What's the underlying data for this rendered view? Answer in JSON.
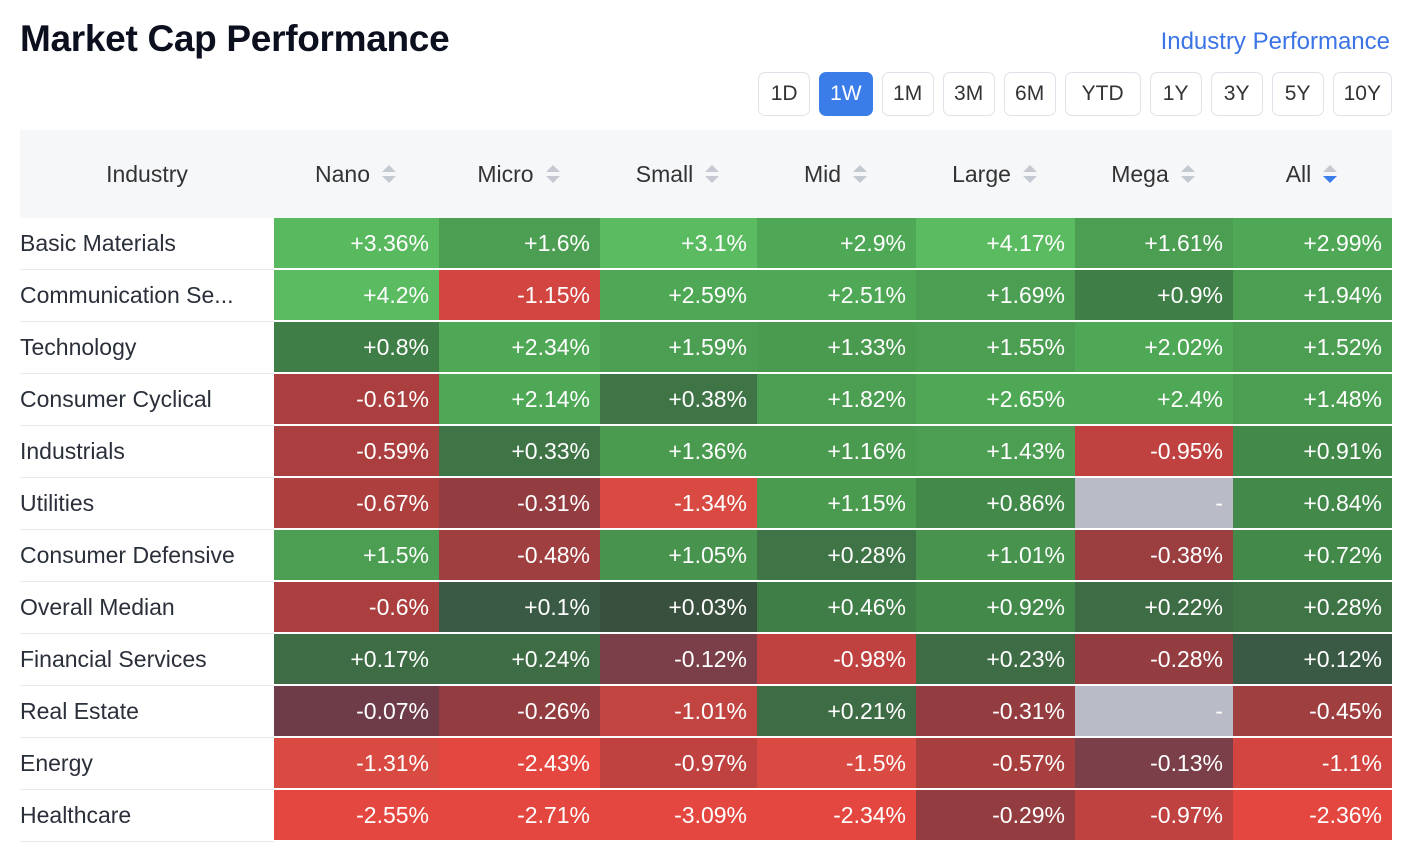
{
  "title": "Market Cap Performance",
  "industry_link": "Industry Performance",
  "periods": [
    {
      "label": "1D",
      "active": false
    },
    {
      "label": "1W",
      "active": true
    },
    {
      "label": "1M",
      "active": false
    },
    {
      "label": "3M",
      "active": false
    },
    {
      "label": "6M",
      "active": false
    },
    {
      "label": "YTD",
      "active": false
    },
    {
      "label": "1Y",
      "active": false
    },
    {
      "label": "3Y",
      "active": false
    },
    {
      "label": "5Y",
      "active": false
    },
    {
      "label": "10Y",
      "active": false
    }
  ],
  "table": {
    "headers": [
      "Industry",
      "Nano",
      "Micro",
      "Small",
      "Mid",
      "Large",
      "Mega",
      "All"
    ],
    "sort_column": "All",
    "sort_direction": "desc",
    "rows": [
      {
        "industry": "Basic Materials",
        "values": [
          "+3.36%",
          "+1.6%",
          "+3.1%",
          "+2.9%",
          "+4.17%",
          "+1.61%",
          "+2.99%"
        ],
        "colors": [
          "#58b95e",
          "#4c9f52",
          "#5bbb60",
          "#4fa855",
          "#5bbb60",
          "#4c9f52",
          "#4fa855"
        ]
      },
      {
        "industry": "Communication Se...",
        "values": [
          "+4.2%",
          "-1.15%",
          "+2.59%",
          "+2.51%",
          "+1.69%",
          "+0.9%",
          "+1.94%"
        ],
        "colors": [
          "#5bbb60",
          "#d24540",
          "#4fa855",
          "#4fa855",
          "#4c9f52",
          "#3f7f47",
          "#4c9f52"
        ]
      },
      {
        "industry": "Technology",
        "values": [
          "+0.8%",
          "+2.34%",
          "+1.59%",
          "+1.33%",
          "+1.55%",
          "+2.02%",
          "+1.52%"
        ],
        "colors": [
          "#3f7f47",
          "#4fa855",
          "#4c9f52",
          "#4a9a50",
          "#4c9f52",
          "#4fa855",
          "#4c9f52"
        ]
      },
      {
        "industry": "Consumer Cyclical",
        "values": [
          "-0.61%",
          "+2.14%",
          "+0.38%",
          "+1.82%",
          "+2.65%",
          "+2.4%",
          "+1.48%"
        ],
        "colors": [
          "#ab3f3f",
          "#4fa855",
          "#3f7446",
          "#4c9f52",
          "#4fa855",
          "#4fa855",
          "#4c9f52"
        ]
      },
      {
        "industry": "Industrials",
        "values": [
          "-0.59%",
          "+0.33%",
          "+1.36%",
          "+1.16%",
          "+1.43%",
          "-0.95%",
          "+0.91%"
        ],
        "colors": [
          "#ab3f3f",
          "#3f7446",
          "#4a9a50",
          "#4a9a50",
          "#4c9f52",
          "#bf4240",
          "#42894a"
        ]
      },
      {
        "industry": "Utilities",
        "values": [
          "-0.67%",
          "-0.31%",
          "-1.34%",
          "+1.15%",
          "+0.86%",
          "-",
          "+0.84%"
        ],
        "colors": [
          "#ae3f3f",
          "#933d40",
          "#d94a43",
          "#4a9a50",
          "#42894a",
          "#b9bcc6",
          "#42894a"
        ]
      },
      {
        "industry": "Consumer Defensive",
        "values": [
          "+1.5%",
          "-0.48%",
          "+1.05%",
          "+0.28%",
          "+1.01%",
          "-0.38%",
          "+0.72%"
        ],
        "colors": [
          "#4c9f52",
          "#a03f40",
          "#48944e",
          "#3f7446",
          "#48944e",
          "#9a3e40",
          "#42894a"
        ]
      },
      {
        "industry": "Overall Median",
        "values": [
          "-0.6%",
          "+0.1%",
          "+0.03%",
          "+0.46%",
          "+0.92%",
          "+0.22%",
          "+0.28%"
        ],
        "colors": [
          "#ab3f3f",
          "#3b5a45",
          "#39503f",
          "#3f7f47",
          "#42894a",
          "#3e6c45",
          "#3f7446"
        ]
      },
      {
        "industry": "Financial Services",
        "values": [
          "+0.17%",
          "+0.24%",
          "-0.12%",
          "-0.98%",
          "+0.23%",
          "-0.28%",
          "+0.12%"
        ],
        "colors": [
          "#3e6c45",
          "#3e6c45",
          "#7a3f48",
          "#bf4240",
          "#3e6c45",
          "#933d40",
          "#3b5a45"
        ]
      },
      {
        "industry": "Real Estate",
        "values": [
          "-0.07%",
          "-0.26%",
          "-1.01%",
          "+0.21%",
          "-0.31%",
          "-",
          "-0.45%"
        ],
        "colors": [
          "#6d3c48",
          "#933d40",
          "#c24441",
          "#3e6c45",
          "#933d40",
          "#b9bcc6",
          "#a03f40"
        ]
      },
      {
        "industry": "Energy",
        "values": [
          "-1.31%",
          "-2.43%",
          "-0.97%",
          "-1.5%",
          "-0.57%",
          "-0.13%",
          "-1.1%"
        ],
        "colors": [
          "#d94a43",
          "#e4473f",
          "#bf4240",
          "#d94a43",
          "#a83f3f",
          "#7a3f48",
          "#d24540"
        ]
      },
      {
        "industry": "Healthcare",
        "values": [
          "-2.55%",
          "-2.71%",
          "-3.09%",
          "-2.34%",
          "-0.29%",
          "-0.97%",
          "-2.36%"
        ],
        "colors": [
          "#e4473f",
          "#e4473f",
          "#e4473f",
          "#e4473f",
          "#933d40",
          "#bf4240",
          "#e4473f"
        ]
      }
    ]
  },
  "icons": {
    "sort": "sort-updown-icon",
    "sort_active": "sort-desc-icon"
  },
  "accent_color": "#3b7de8"
}
